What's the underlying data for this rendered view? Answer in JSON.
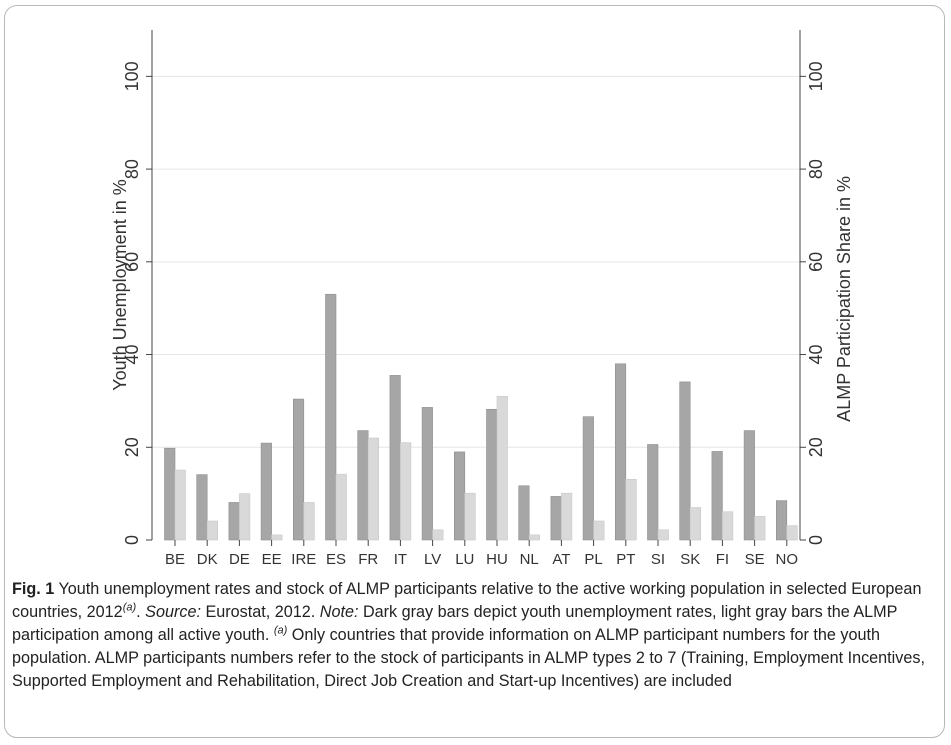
{
  "chart_data": {
    "type": "bar",
    "categories": [
      "BE",
      "DK",
      "DE",
      "EE",
      "IRE",
      "ES",
      "FR",
      "IT",
      "LV",
      "LU",
      "HU",
      "NL",
      "AT",
      "PL",
      "PT",
      "SI",
      "SK",
      "FI",
      "SE",
      "NO"
    ],
    "series": [
      {
        "name": "",
        "color": "#a6a6a6",
        "values": [
          19.8,
          14.1,
          8.1,
          20.9,
          30.4,
          53.0,
          23.6,
          35.5,
          28.6,
          19.0,
          28.2,
          11.7,
          9.4,
          26.6,
          38.0,
          20.6,
          34.1,
          19.1,
          23.6,
          8.5
        ]
      },
      {
        "name": "",
        "color": "#d9d9d9",
        "values": [
          15.1,
          4.1,
          10.0,
          1.1,
          8.1,
          14.2,
          22.0,
          21.0,
          2.2,
          10.1,
          31.0,
          1.1,
          10.1,
          4.1,
          13.1,
          2.2,
          7.0,
          6.1,
          5.1,
          3.1
        ]
      }
    ],
    "ylabel": "Youth Unemployment in %",
    "y2label": "ALMP Participation Share in %",
    "ylim": [
      0,
      110
    ],
    "y2lim": [
      0,
      110
    ],
    "yticks": [
      "0",
      "20",
      "40",
      "60",
      "80",
      "100"
    ],
    "grid": true
  },
  "caption": {
    "fig_label": "Fig. 1",
    "text_1": " Youth unemployment rates and stock of ALMP participants relative to the active working population in selected European countries, 2012",
    "sup_a": "(a)",
    "text_2": ". ",
    "source_label": "Source:",
    "source_text": " Eurostat, 2012. ",
    "note_label": "Note:",
    "note_text": " Dark gray bars depict youth unemployment rates, light gray bars the ALMP participation among all active youth. ",
    "text_3": " Only countries that provide information on ALMP participant numbers for the youth population. ALMP participants numbers refer to the stock of participants in ALMP types 2 to 7 (Training, Employment Incentives, Supported Employment and Rehabilitation, Direct Job Creation and Start-up Incentives) are included"
  }
}
